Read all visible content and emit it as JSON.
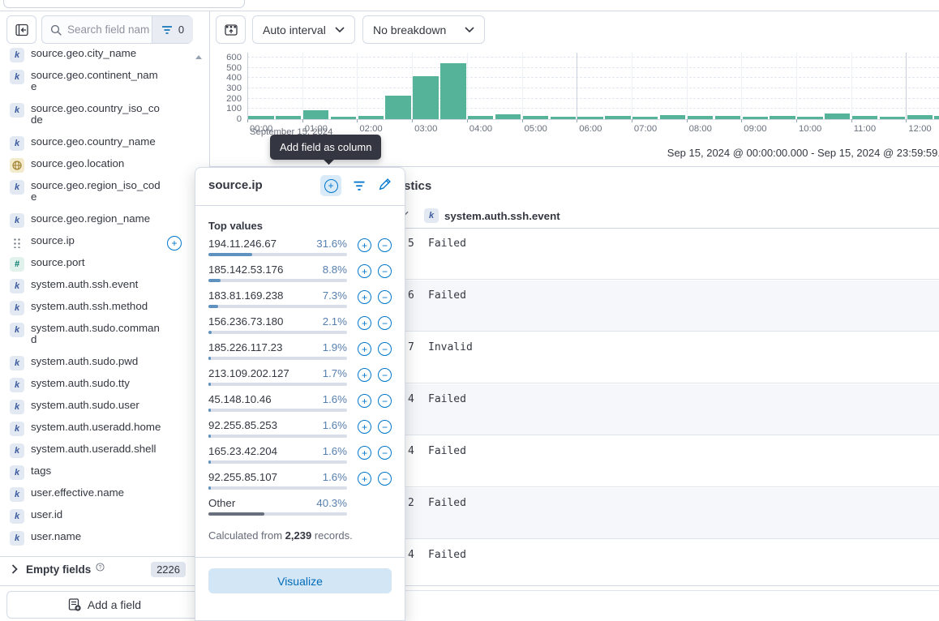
{
  "sidebar": {
    "search_placeholder": "Search field names",
    "filter_count": "0",
    "fields": [
      {
        "label": "source.geo.city_name",
        "lines": [
          "source.geo.city_name"
        ],
        "type": "k"
      },
      {
        "label": "source.geo.continent_name",
        "lines": [
          "source.geo.continent_nam",
          "e"
        ],
        "type": "k"
      },
      {
        "label": "source.geo.country_iso_code",
        "lines": [
          "source.geo.country_iso_co",
          "de"
        ],
        "type": "k"
      },
      {
        "label": "source.geo.country_name",
        "lines": [
          "source.geo.country_name"
        ],
        "type": "k"
      },
      {
        "label": "source.geo.location",
        "lines": [
          "source.geo.location"
        ],
        "type": "geo"
      },
      {
        "label": "source.geo.region_iso_code",
        "lines": [
          "source.geo.region_iso_cod",
          "e"
        ],
        "type": "k"
      },
      {
        "label": "source.geo.region_name",
        "lines": [
          "source.geo.region_name"
        ],
        "type": "k"
      },
      {
        "label": "source.ip",
        "lines": [
          "source.ip"
        ],
        "type": "drag",
        "active": true
      },
      {
        "label": "source.port",
        "lines": [
          "source.port"
        ],
        "type": "num"
      },
      {
        "label": "system.auth.ssh.event",
        "lines": [
          "system.auth.ssh.event"
        ],
        "type": "k"
      },
      {
        "label": "system.auth.ssh.method",
        "lines": [
          "system.auth.ssh.method"
        ],
        "type": "k"
      },
      {
        "label": "system.auth.sudo.command",
        "lines": [
          "system.auth.sudo.comman",
          "d"
        ],
        "type": "k"
      },
      {
        "label": "system.auth.sudo.pwd",
        "lines": [
          "system.auth.sudo.pwd"
        ],
        "type": "k"
      },
      {
        "label": "system.auth.sudo.tty",
        "lines": [
          "system.auth.sudo.tty"
        ],
        "type": "k"
      },
      {
        "label": "system.auth.sudo.user",
        "lines": [
          "system.auth.sudo.user"
        ],
        "type": "k"
      },
      {
        "label": "system.auth.useradd.home",
        "lines": [
          "system.auth.useradd.home"
        ],
        "type": "k"
      },
      {
        "label": "system.auth.useradd.shell",
        "lines": [
          "system.auth.useradd.shell"
        ],
        "type": "k"
      },
      {
        "label": "tags",
        "lines": [
          "tags"
        ],
        "type": "k"
      },
      {
        "label": "user.effective.name",
        "lines": [
          "user.effective.name"
        ],
        "type": "k"
      },
      {
        "label": "user.id",
        "lines": [
          "user.id"
        ],
        "type": "k"
      },
      {
        "label": "user.name",
        "lines": [
          "user.name"
        ],
        "type": "k"
      }
    ],
    "empty_fields": {
      "label": "Empty fields",
      "count": "2226"
    },
    "add_field_label": "Add a field"
  },
  "toolbar": {
    "interval_label": "Auto interval",
    "breakdown_label": "No breakdown"
  },
  "chart_data": {
    "type": "bar",
    "x": [
      "00:00",
      "00:30",
      "01:00",
      "01:30",
      "02:00",
      "02:30",
      "03:00",
      "03:30",
      "04:00",
      "04:30",
      "05:00",
      "05:30",
      "06:00",
      "06:30",
      "07:00",
      "07:30",
      "08:00",
      "08:30",
      "09:00",
      "09:30",
      "10:00",
      "10:30",
      "11:00",
      "11:30",
      "12:00",
      "12:30"
    ],
    "values": [
      28,
      30,
      88,
      25,
      28,
      230,
      420,
      545,
      28,
      45,
      28,
      25,
      25,
      28,
      25,
      38,
      28,
      28,
      25,
      28,
      25,
      58,
      28,
      25,
      42,
      28
    ],
    "x_ticks": [
      "00:00",
      "01:00",
      "02:00",
      "03:00",
      "04:00",
      "05:00",
      "06:00",
      "07:00",
      "08:00",
      "09:00",
      "10:00",
      "11:00",
      "12:00"
    ],
    "y_ticks": [
      0,
      100,
      200,
      300,
      400,
      500,
      600
    ],
    "ylim": [
      0,
      600
    ],
    "bar_color": "#54B399",
    "x_axis_secondary_label": "September 15, 2024",
    "time_range_label": "Sep 15, 2024 @ 00:00:00.000 - Sep 15, 2024 @ 23:59:59."
  },
  "tooltip": {
    "label": "Add field as column"
  },
  "popover": {
    "title": "source.ip",
    "section_title": "Top values",
    "values": [
      {
        "value": "194.11.246.67",
        "pct": "31.6%",
        "ratio": 0.316
      },
      {
        "value": "185.142.53.176",
        "pct": "8.8%",
        "ratio": 0.088
      },
      {
        "value": "183.81.169.238",
        "pct": "7.3%",
        "ratio": 0.073
      },
      {
        "value": "156.236.73.180",
        "pct": "2.1%",
        "ratio": 0.021
      },
      {
        "value": "185.226.117.23",
        "pct": "1.9%",
        "ratio": 0.019
      },
      {
        "value": "213.109.202.127",
        "pct": "1.7%",
        "ratio": 0.017
      },
      {
        "value": "45.148.10.46",
        "pct": "1.6%",
        "ratio": 0.016
      },
      {
        "value": "92.255.85.253",
        "pct": "1.6%",
        "ratio": 0.016
      },
      {
        "value": "165.23.42.204",
        "pct": "1.6%",
        "ratio": 0.016
      },
      {
        "value": "92.255.85.107",
        "pct": "1.6%",
        "ratio": 0.016
      }
    ],
    "other": {
      "label": "Other",
      "pct": "40.3%",
      "ratio": 0.403
    },
    "calc": {
      "prefix": "Calculated from ",
      "count": "2,239",
      "suffix": " records."
    },
    "visualize_label": "Visualize"
  },
  "main": {
    "heading": "Field statistics",
    "table": {
      "header": {
        "type_badge": "k",
        "label": "system.auth.ssh.event"
      },
      "rows": [
        {
          "fragment": "5",
          "event": "Failed"
        },
        {
          "fragment": "6",
          "event": "Failed"
        },
        {
          "fragment": "7",
          "event": "Invalid"
        },
        {
          "fragment": "4",
          "event": "Failed"
        },
        {
          "fragment": "4",
          "event": "Failed"
        },
        {
          "fragment": "2",
          "event": "Failed"
        },
        {
          "fragment": "4",
          "event": "Failed"
        }
      ]
    }
  }
}
